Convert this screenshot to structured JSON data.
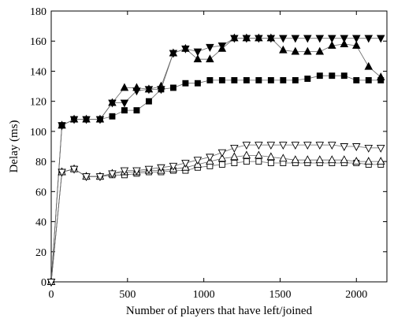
{
  "chart_data": {
    "type": "line",
    "title": "",
    "xlabel": "Number of players that have left/joined",
    "ylabel": "Delay (ms)",
    "xlim": [
      0,
      2200
    ],
    "ylim": [
      0,
      180
    ],
    "xticks": [
      0,
      500,
      1000,
      1500,
      2000
    ],
    "yticks": [
      0,
      20,
      40,
      60,
      80,
      100,
      120,
      140,
      160,
      180
    ],
    "xtick_labels": [
      "0",
      "500",
      "1000",
      "1500",
      "2000"
    ],
    "ytick_labels": [
      "0",
      "20",
      "40",
      "60",
      "80",
      "100",
      "120",
      "140",
      "160",
      "180"
    ],
    "grid": false,
    "legend": "none",
    "series": [
      {
        "marker": "square-filled",
        "points": [
          [
            0,
            0
          ],
          [
            70,
            104
          ],
          [
            150,
            108
          ],
          [
            230,
            108
          ],
          [
            320,
            108
          ],
          [
            400,
            110
          ],
          [
            480,
            114
          ],
          [
            560,
            114
          ],
          [
            640,
            120
          ],
          [
            720,
            128
          ],
          [
            800,
            129
          ],
          [
            880,
            132
          ],
          [
            960,
            132
          ],
          [
            1040,
            134
          ],
          [
            1120,
            134
          ],
          [
            1200,
            134
          ],
          [
            1280,
            134
          ],
          [
            1360,
            134
          ],
          [
            1440,
            134
          ],
          [
            1520,
            134
          ],
          [
            1600,
            134
          ],
          [
            1680,
            135
          ],
          [
            1760,
            137
          ],
          [
            1840,
            137
          ],
          [
            1920,
            137
          ],
          [
            2000,
            134
          ],
          [
            2080,
            134
          ],
          [
            2160,
            134
          ]
        ]
      },
      {
        "marker": "triangle-up-filled",
        "points": [
          [
            0,
            0
          ],
          [
            70,
            104
          ],
          [
            150,
            108
          ],
          [
            230,
            108
          ],
          [
            320,
            108
          ],
          [
            400,
            119
          ],
          [
            480,
            129
          ],
          [
            560,
            129
          ],
          [
            640,
            128
          ],
          [
            720,
            130
          ],
          [
            800,
            152
          ],
          [
            880,
            155
          ],
          [
            960,
            148
          ],
          [
            1040,
            148
          ],
          [
            1120,
            155
          ],
          [
            1200,
            162
          ],
          [
            1280,
            162
          ],
          [
            1360,
            162
          ],
          [
            1440,
            162
          ],
          [
            1520,
            154
          ],
          [
            1600,
            153
          ],
          [
            1680,
            153
          ],
          [
            1760,
            153
          ],
          [
            1840,
            157
          ],
          [
            1920,
            158
          ],
          [
            2000,
            157
          ],
          [
            2080,
            143
          ],
          [
            2160,
            136
          ]
        ]
      },
      {
        "marker": "triangle-down-filled",
        "points": [
          [
            0,
            0
          ],
          [
            70,
            104
          ],
          [
            150,
            108
          ],
          [
            230,
            108
          ],
          [
            320,
            108
          ],
          [
            400,
            119
          ],
          [
            480,
            119
          ],
          [
            560,
            127
          ],
          [
            640,
            128
          ],
          [
            720,
            128
          ],
          [
            800,
            152
          ],
          [
            880,
            155
          ],
          [
            960,
            153
          ],
          [
            1040,
            156
          ],
          [
            1120,
            157
          ],
          [
            1200,
            162
          ],
          [
            1280,
            162
          ],
          [
            1360,
            162
          ],
          [
            1440,
            162
          ],
          [
            1520,
            162
          ],
          [
            1600,
            162
          ],
          [
            1680,
            162
          ],
          [
            1760,
            162
          ],
          [
            1840,
            162
          ],
          [
            1920,
            162
          ],
          [
            2000,
            162
          ],
          [
            2080,
            162
          ],
          [
            2160,
            162
          ]
        ]
      },
      {
        "marker": "square-open",
        "points": [
          [
            0,
            0
          ],
          [
            70,
            73
          ],
          [
            150,
            75
          ],
          [
            230,
            70
          ],
          [
            320,
            70
          ],
          [
            400,
            71
          ],
          [
            480,
            71
          ],
          [
            560,
            72
          ],
          [
            640,
            73
          ],
          [
            720,
            73
          ],
          [
            800,
            74
          ],
          [
            880,
            74
          ],
          [
            960,
            76
          ],
          [
            1040,
            77
          ],
          [
            1120,
            78
          ],
          [
            1200,
            79
          ],
          [
            1280,
            80
          ],
          [
            1360,
            80
          ],
          [
            1440,
            79
          ],
          [
            1520,
            79
          ],
          [
            1600,
            79
          ],
          [
            1680,
            79
          ],
          [
            1760,
            79
          ],
          [
            1840,
            79
          ],
          [
            1920,
            79
          ],
          [
            2000,
            79
          ],
          [
            2080,
            78
          ],
          [
            2160,
            78
          ]
        ]
      },
      {
        "marker": "triangle-up-open",
        "points": [
          [
            0,
            0
          ],
          [
            70,
            73
          ],
          [
            150,
            75
          ],
          [
            230,
            70
          ],
          [
            320,
            70
          ],
          [
            400,
            72
          ],
          [
            480,
            73
          ],
          [
            560,
            73
          ],
          [
            640,
            74
          ],
          [
            720,
            74
          ],
          [
            800,
            75
          ],
          [
            880,
            76
          ],
          [
            960,
            78
          ],
          [
            1040,
            80
          ],
          [
            1120,
            82
          ],
          [
            1200,
            83
          ],
          [
            1280,
            84
          ],
          [
            1360,
            84
          ],
          [
            1440,
            83
          ],
          [
            1520,
            82
          ],
          [
            1600,
            81
          ],
          [
            1680,
            81
          ],
          [
            1760,
            81
          ],
          [
            1840,
            81
          ],
          [
            1920,
            81
          ],
          [
            2000,
            80
          ],
          [
            2080,
            80
          ],
          [
            2160,
            80
          ]
        ]
      },
      {
        "marker": "triangle-down-open",
        "points": [
          [
            0,
            0
          ],
          [
            70,
            73
          ],
          [
            150,
            75
          ],
          [
            230,
            70
          ],
          [
            320,
            70
          ],
          [
            400,
            72
          ],
          [
            480,
            74
          ],
          [
            560,
            74
          ],
          [
            640,
            75
          ],
          [
            720,
            76
          ],
          [
            800,
            77
          ],
          [
            880,
            79
          ],
          [
            960,
            81
          ],
          [
            1040,
            83
          ],
          [
            1120,
            86
          ],
          [
            1200,
            89
          ],
          [
            1280,
            91
          ],
          [
            1360,
            91
          ],
          [
            1440,
            91
          ],
          [
            1520,
            91
          ],
          [
            1600,
            91
          ],
          [
            1680,
            91
          ],
          [
            1760,
            91
          ],
          [
            1840,
            91
          ],
          [
            1920,
            90
          ],
          [
            2000,
            90
          ],
          [
            2080,
            89
          ],
          [
            2160,
            89
          ]
        ]
      }
    ]
  }
}
